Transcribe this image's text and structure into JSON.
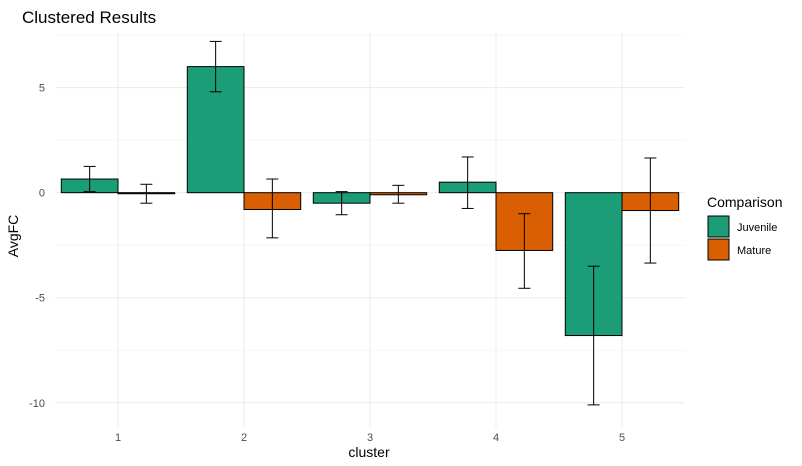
{
  "chart_data": {
    "type": "bar",
    "title": "Clustered Results",
    "xlabel": "cluster",
    "ylabel": "AvgFC",
    "categories": [
      "1",
      "2",
      "3",
      "4",
      "5"
    ],
    "ylim": [
      -11.2,
      7.6
    ],
    "yticks": [
      5,
      0,
      -5,
      -10
    ],
    "yticklabels": [
      "5",
      "0",
      "-5",
      "-10"
    ],
    "grid": true,
    "legend": {
      "title": "Comparison",
      "placement": "right"
    },
    "series": [
      {
        "name": "Juvenile",
        "color": "#1b9e77",
        "values": [
          0.65,
          6.0,
          -0.5,
          0.5,
          -6.8
        ],
        "error_low": [
          0.05,
          4.8,
          -1.05,
          -0.75,
          -10.1
        ],
        "error_high": [
          1.25,
          7.2,
          0.05,
          1.7,
          -3.5
        ]
      },
      {
        "name": "Mature",
        "color": "#d95f02",
        "values": [
          -0.05,
          -0.8,
          -0.1,
          -2.75,
          -0.85
        ],
        "error_low": [
          -0.5,
          -2.15,
          -0.5,
          -4.55,
          -3.35
        ],
        "error_high": [
          0.4,
          0.65,
          0.35,
          -1.0,
          1.65
        ]
      }
    ]
  }
}
